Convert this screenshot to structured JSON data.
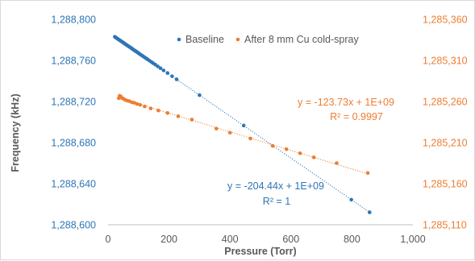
{
  "chart_data": {
    "type": "scatter",
    "xlabel": "Pressure (Torr)",
    "ylabel": "Frequency (kHz)",
    "xlim": [
      0,
      1000
    ],
    "xticks": [
      0,
      200,
      400,
      600,
      800,
      1000
    ],
    "x_tick_labels": [
      "0",
      "200",
      "400",
      "600",
      "800",
      "1,000"
    ],
    "ylim_left": [
      1288600,
      1288800
    ],
    "yticks_left": [
      1288600,
      1288640,
      1288680,
      1288720,
      1288760,
      1288800
    ],
    "y_tick_labels_left": [
      "1,288,600",
      "1,288,640",
      "1,288,680",
      "1,288,720",
      "1,288,760",
      "1,288,800"
    ],
    "ylim_right": [
      1285110,
      1285360
    ],
    "yticks_right": [
      1285110,
      1285160,
      1285210,
      1285260,
      1285310,
      1285360
    ],
    "y_tick_labels_right": [
      "1,285,110",
      "1,285,160",
      "1,285,210",
      "1,285,260",
      "1,285,310",
      "1,285,360"
    ],
    "grid": false,
    "legend_position": "top-right",
    "colors": {
      "baseline": "#2e75b6",
      "coldspray": "#ed7d31",
      "axis_text": "#595959",
      "axis_line": "#bfbfbf"
    },
    "series": [
      {
        "name": "Baseline",
        "axis": "left",
        "color": "#2e75b6",
        "x": [
          22,
          25,
          28,
          31,
          34,
          37,
          40,
          43,
          46,
          49,
          52,
          55,
          58,
          61,
          64,
          67,
          70,
          73,
          76,
          79,
          82,
          85,
          88,
          91,
          94,
          97,
          100,
          104,
          108,
          112,
          116,
          120,
          125,
          130,
          136,
          142,
          148,
          155,
          163,
          172,
          182,
          195,
          210,
          225,
          300,
          445,
          798,
          858
        ],
        "y": [
          1288783,
          1288782.4,
          1288781.8,
          1288781.1,
          1288780.5,
          1288779.9,
          1288779.3,
          1288778.7,
          1288778.1,
          1288777.5,
          1288776.9,
          1288776.2,
          1288775.6,
          1288775,
          1288774.4,
          1288773.8,
          1288773.2,
          1288772.6,
          1288772,
          1288771.4,
          1288770.7,
          1288770.1,
          1288769.5,
          1288768.9,
          1288768.3,
          1288767.7,
          1288767.1,
          1288766.2,
          1288765.4,
          1288764.6,
          1288763.8,
          1288763,
          1288762,
          1288761,
          1288759.7,
          1288758.5,
          1288757.3,
          1288755.9,
          1288754.2,
          1288752.4,
          1288750.3,
          1288747.7,
          1288744.6,
          1288741.6,
          1288726.2,
          1288696.6,
          1288624.4,
          1288612.1
        ]
      },
      {
        "name": "After 8 mm Cu cold-spray",
        "axis": "right",
        "color": "#ed7d31",
        "x": [
          35,
          38,
          42,
          46,
          50,
          56,
          63,
          70,
          78,
          86,
          95,
          105,
          120,
          140,
          165,
          195,
          230,
          275,
          355,
          400,
          467,
          540,
          585,
          630,
          675,
          750,
          852
        ],
        "y": [
          1285264,
          1285267,
          1285266,
          1285264,
          1285263.5,
          1285262,
          1285261,
          1285260.5,
          1285259,
          1285258.5,
          1285257,
          1285256,
          1285254,
          1285251.5,
          1285249,
          1285246,
          1285242,
          1285238,
          1285227,
          1285222,
          1285215,
          1285206,
          1285202,
          1285197,
          1285192,
          1285185,
          1285173
        ]
      }
    ],
    "annotations": [
      {
        "text": "y = -123.73x + 1E+09",
        "series": "After 8 mm Cu cold-spray"
      },
      {
        "text": "R² = 0.9997",
        "series": "After 8 mm Cu cold-spray"
      },
      {
        "text": "y = -204.44x + 1E+09",
        "series": "Baseline"
      },
      {
        "text": "R² = 1",
        "series": "Baseline"
      }
    ]
  }
}
